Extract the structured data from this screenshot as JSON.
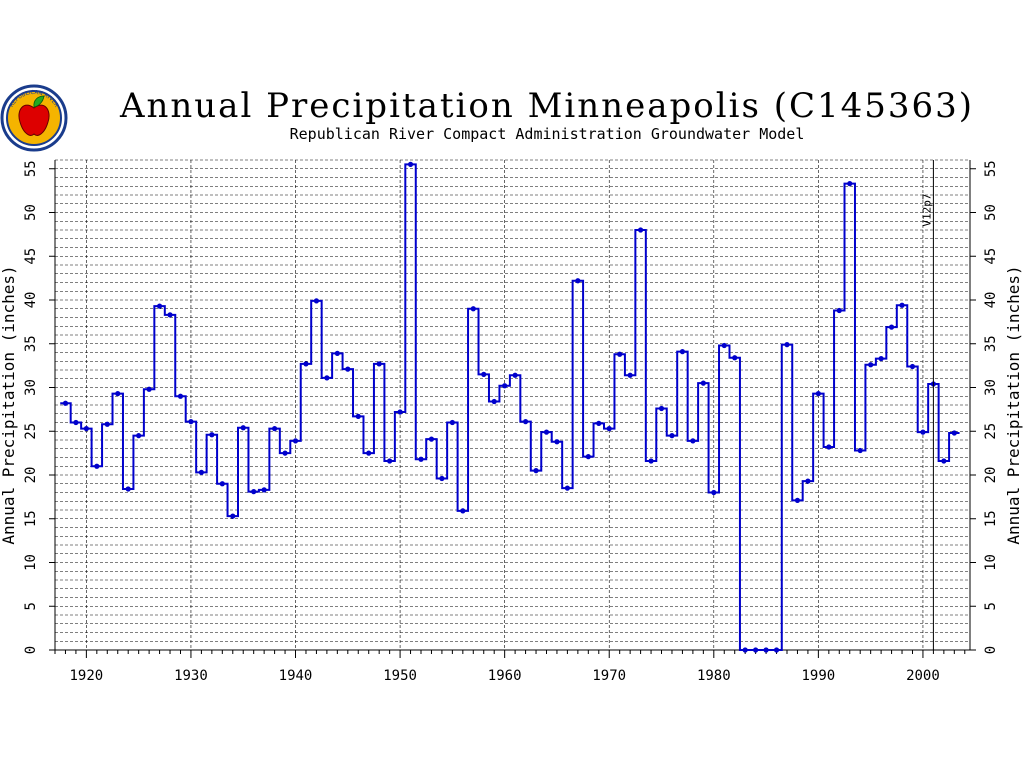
{
  "logo": {
    "text": "REPUBLICAN RIVER"
  },
  "colors": {
    "series": "#0000cc",
    "point": "#0000cc",
    "grid": "#000000",
    "logo_ring": "#1a3c8c",
    "logo_fill": "#f5b400",
    "logo_apple": "#dd0000",
    "logo_leaf": "#22aa22"
  },
  "chart_data": {
    "type": "line",
    "step": true,
    "title": "Annual Precipitation Minneapolis (C145363)",
    "subtitle": "Republican River Compact Administration Groundwater Model",
    "ylabel": "Annual Precipitation (inches)",
    "ylabel_right": "Annual Precipitation (inches)",
    "xlabel": "",
    "xlim": [
      1917,
      2004.5
    ],
    "ylim": [
      0,
      56
    ],
    "xticks": [
      1920,
      1930,
      1940,
      1950,
      1960,
      1970,
      1980,
      1990,
      2000
    ],
    "yticks": [
      0,
      5,
      10,
      15,
      20,
      25,
      30,
      35,
      40,
      45,
      50,
      55
    ],
    "grid": true,
    "minor_y_step": 1,
    "marker_line": {
      "x": 2001,
      "label": "V12p7"
    },
    "years": [
      1918,
      2003
    ],
    "values": [
      28.2,
      26.0,
      25.3,
      21.0,
      25.8,
      29.3,
      18.4,
      24.5,
      29.8,
      39.3,
      38.3,
      29.0,
      26.1,
      20.3,
      24.6,
      19.0,
      15.3,
      25.4,
      18.1,
      18.3,
      25.3,
      22.5,
      23.9,
      32.7,
      39.9,
      31.1,
      33.9,
      32.1,
      26.7,
      22.5,
      32.7,
      21.6,
      27.2,
      55.5,
      21.8,
      24.1,
      19.6,
      26.0,
      15.9,
      39.0,
      31.5,
      28.4,
      30.2,
      31.4,
      26.1,
      20.5,
      24.9,
      23.8,
      18.5,
      42.2,
      22.1,
      25.9,
      25.3,
      33.8,
      31.4,
      48.0,
      21.6,
      27.6,
      24.5,
      34.1,
      23.9,
      30.5,
      18.0,
      34.8,
      33.4,
      0.0,
      0.0,
      0.0,
      0.0,
      34.9,
      17.1,
      19.3,
      29.3,
      23.2,
      38.8,
      53.3,
      22.8,
      32.6,
      33.3,
      36.9,
      39.4,
      32.4,
      24.9,
      30.4,
      21.6,
      24.8
    ]
  }
}
